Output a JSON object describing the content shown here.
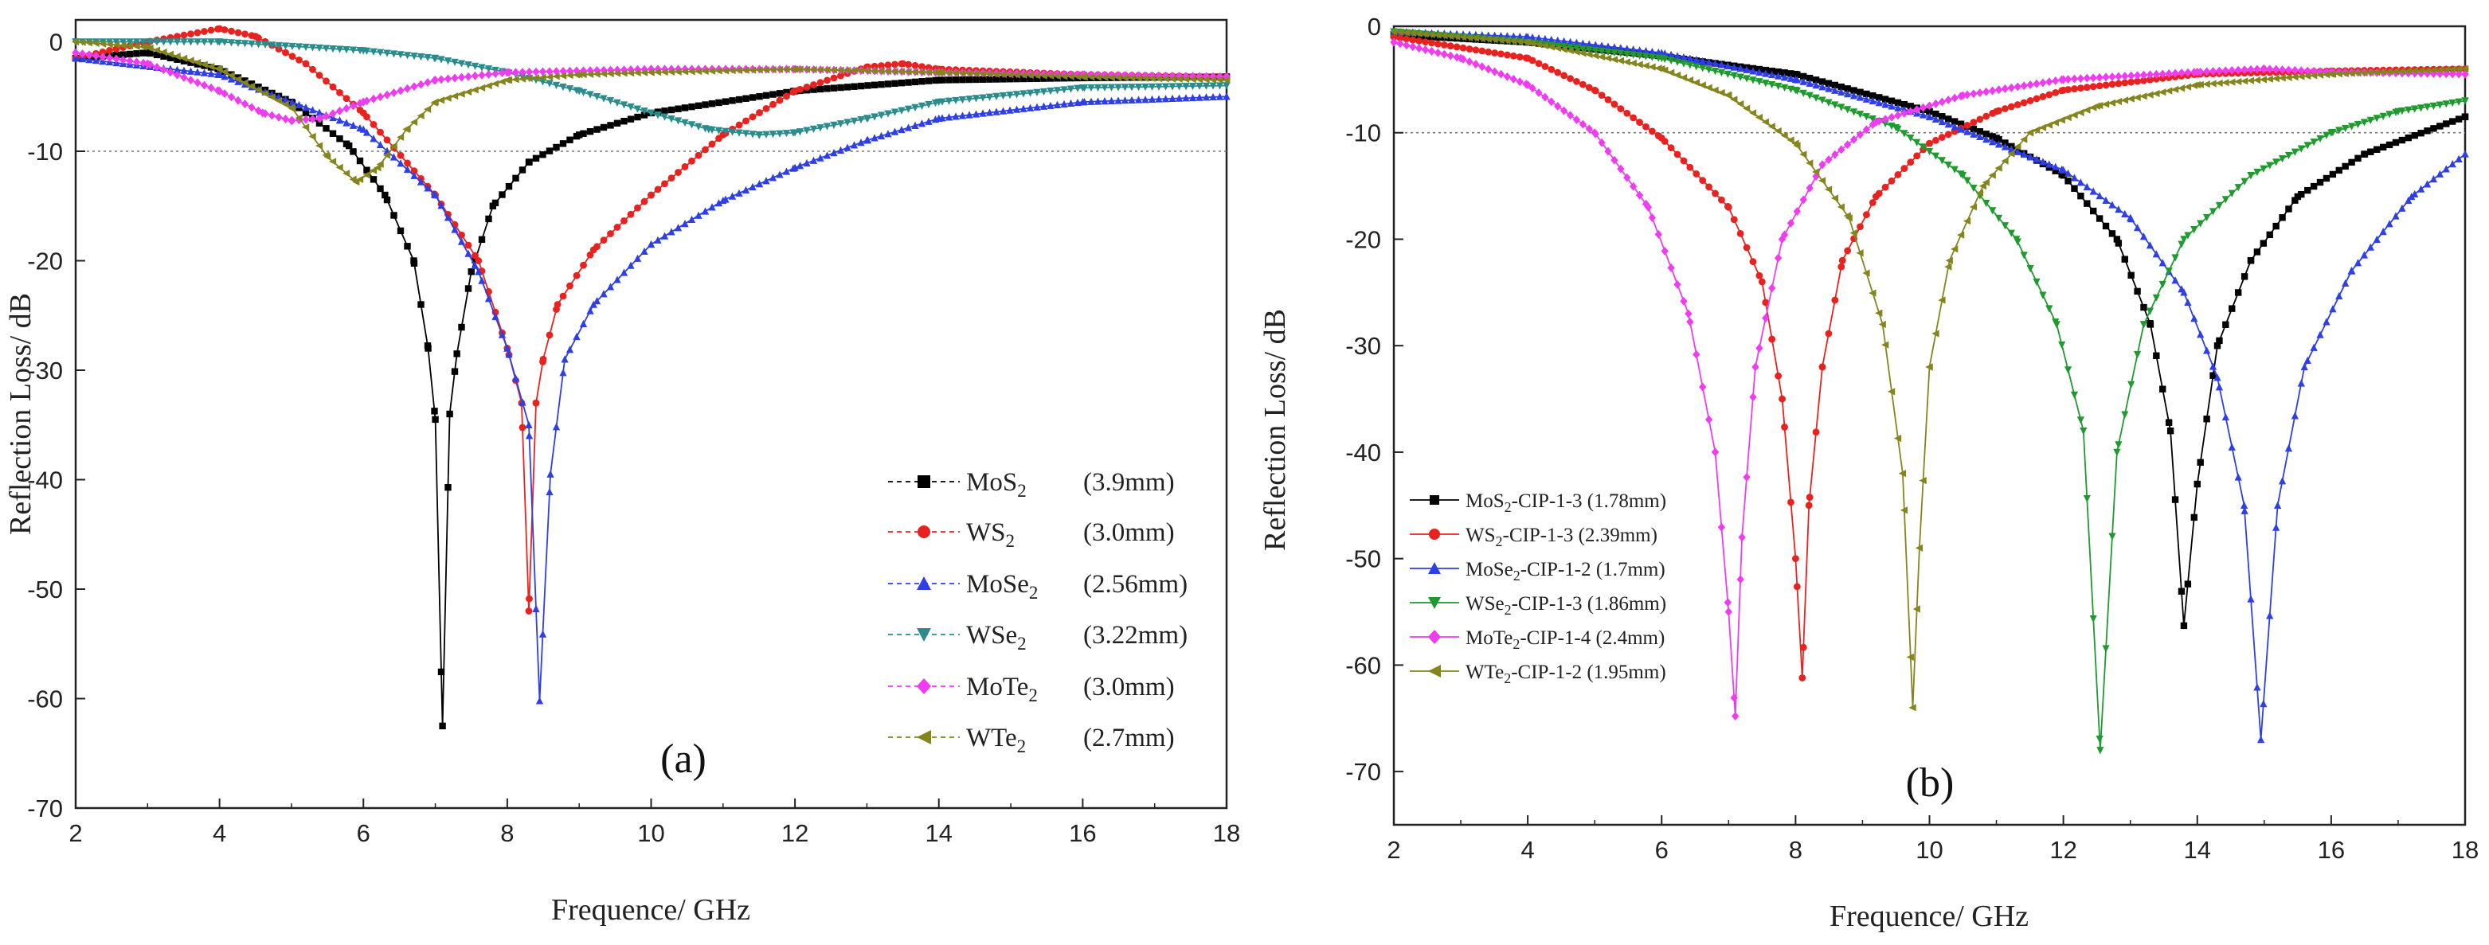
{
  "chart_data": [
    {
      "type": "line",
      "panel_label": "(a)",
      "xlabel": "Frequence/ GHz",
      "ylabel": "Reflection Loss/ dB",
      "xlim": [
        2,
        18
      ],
      "ylim": [
        -70,
        2
      ],
      "xticks": [
        2,
        4,
        6,
        8,
        10,
        12,
        14,
        16,
        18
      ],
      "yticks": [
        0,
        -10,
        -20,
        -30,
        -40,
        -50,
        -60,
        -70
      ],
      "reference_line": -10,
      "legend_position": "bottom-right",
      "series": [
        {
          "name": "MoS",
          "sub": "2",
          "thickness": "(3.9mm)",
          "color": "#000000",
          "marker": "square",
          "x": [
            2,
            3,
            4,
            5,
            5.8,
            6.3,
            6.7,
            6.9,
            7.0,
            7.1,
            7.2,
            7.3,
            7.5,
            7.8,
            8.3,
            9.0,
            10.0,
            12.0,
            14.0,
            16.0,
            18.0
          ],
          "y": [
            -1.5,
            -1.0,
            -2.5,
            -5.5,
            -9.5,
            -14.0,
            -20.0,
            -28.0,
            -34.5,
            -62.5,
            -34.0,
            -28.5,
            -21.0,
            -15.0,
            -11.0,
            -8.5,
            -6.5,
            -4.5,
            -3.5,
            -3.3,
            -3.2
          ]
        },
        {
          "name": "WS",
          "sub": "2",
          "thickness": "(3.0mm)",
          "color": "#e8231f",
          "marker": "circle",
          "x": [
            2,
            3,
            4,
            4.5,
            5.2,
            6,
            7,
            7.6,
            8.0,
            8.2,
            8.3,
            8.4,
            8.5,
            8.7,
            9.2,
            10,
            11,
            12,
            13,
            13.5,
            14,
            16,
            18
          ],
          "y": [
            -1.5,
            0,
            1.2,
            0.5,
            -2.0,
            -6.5,
            -14.0,
            -20.0,
            -28.0,
            -33.0,
            -52.0,
            -33.0,
            -29.0,
            -24.0,
            -19.0,
            -14.0,
            -8.5,
            -4.5,
            -2.3,
            -2.0,
            -2.5,
            -3.0,
            -3.2
          ]
        },
        {
          "name": "MoSe",
          "sub": "2",
          "thickness": "(2.56mm)",
          "color": "#2e3fe6",
          "marker": "triangle-up",
          "x": [
            2,
            4,
            6,
            7,
            7.6,
            8.0,
            8.3,
            8.45,
            8.6,
            8.8,
            9.2,
            10,
            11,
            12,
            13,
            14,
            16,
            18
          ],
          "y": [
            -1.5,
            -3.0,
            -8.0,
            -14.0,
            -21.0,
            -28.0,
            -35.0,
            -60.2,
            -39.5,
            -29.0,
            -24.0,
            -18.5,
            -14.5,
            -11.5,
            -9.0,
            -7.0,
            -5.5,
            -5.0
          ]
        },
        {
          "name": "WSe",
          "sub": "2",
          "thickness": "(3.22mm)",
          "color": "#2a8c8c",
          "marker": "triangle-down",
          "x": [
            2,
            4,
            6,
            7,
            8,
            9,
            10,
            10.8,
            11.5,
            12,
            13,
            14,
            16,
            18
          ],
          "y": [
            0,
            0,
            -0.8,
            -1.5,
            -2.8,
            -4.5,
            -6.5,
            -8.0,
            -8.5,
            -8.3,
            -7.0,
            -5.5,
            -4.2,
            -4.0
          ]
        },
        {
          "name": "MoTe",
          "sub": "2",
          "thickness": "(3.0mm)",
          "color": "#ef3cf0",
          "marker": "diamond",
          "x": [
            2,
            3,
            4,
            4.6,
            5.0,
            5.4,
            6,
            7,
            8,
            10,
            12,
            14,
            16,
            18
          ],
          "y": [
            -1.0,
            -2.0,
            -4.5,
            -6.5,
            -7.2,
            -7.0,
            -5.5,
            -3.5,
            -2.8,
            -2.5,
            -2.5,
            -2.8,
            -3.0,
            -3.2
          ]
        },
        {
          "name": "WTe",
          "sub": "2",
          "thickness": "(2.7mm)",
          "color": "#85851e",
          "marker": "triangle-left",
          "x": [
            2,
            3,
            4,
            5,
            5.5,
            5.9,
            6.2,
            6.6,
            7,
            8,
            9,
            10,
            12,
            14,
            16,
            18
          ],
          "y": [
            0,
            -0.5,
            -2.5,
            -6.0,
            -10.5,
            -12.8,
            -11.5,
            -8.0,
            -5.5,
            -3.5,
            -3.0,
            -2.8,
            -2.5,
            -2.8,
            -3.2,
            -3.5
          ]
        }
      ]
    },
    {
      "type": "line",
      "panel_label": "(b)",
      "xlabel": "Frequence/ GHz",
      "ylabel": "Reflection Loss/ dB",
      "xlim": [
        2,
        18
      ],
      "ylim": [
        -75,
        0
      ],
      "xticks": [
        2,
        4,
        6,
        8,
        10,
        12,
        14,
        16,
        18
      ],
      "yticks": [
        0,
        -10,
        -20,
        -30,
        -40,
        -50,
        -60,
        -70
      ],
      "reference_line": -10,
      "legend_position": "bottom-left",
      "series": [
        {
          "name": "MoS",
          "sub": "2",
          "label_rest": "-CIP-1-3 (1.78mm)",
          "color": "#000000",
          "marker": "square",
          "x": [
            2,
            4,
            6,
            8,
            10,
            11,
            12,
            12.8,
            13.3,
            13.6,
            13.8,
            14.0,
            14.3,
            14.8,
            15.5,
            16.5,
            18
          ],
          "y": [
            -0.8,
            -1.5,
            -2.8,
            -4.5,
            -8.0,
            -10.5,
            -14.0,
            -20.0,
            -28.0,
            -38.0,
            -56.3,
            -43.0,
            -30.0,
            -22.0,
            -16.0,
            -12.0,
            -8.5
          ]
        },
        {
          "name": "WS",
          "sub": "2",
          "label_rest": "-CIP-1-3 (2.39mm)",
          "color": "#e8231f",
          "marker": "circle",
          "x": [
            2,
            4,
            5,
            6,
            7,
            7.5,
            7.8,
            8.0,
            8.1,
            8.2,
            8.4,
            8.7,
            9.2,
            10,
            11,
            12,
            14,
            16,
            18
          ],
          "y": [
            -1.0,
            -3.0,
            -6.0,
            -10.5,
            -17.0,
            -24.0,
            -35.0,
            -50.0,
            -61.2,
            -45.0,
            -32.0,
            -22.0,
            -16.0,
            -11.0,
            -8.0,
            -6.0,
            -4.5,
            -4.2,
            -4.0
          ]
        },
        {
          "name": "MoSe",
          "sub": "2",
          "label_rest": "-CIP-1-2 (1.7mm)",
          "color": "#2e3fe6",
          "marker": "triangle-up",
          "x": [
            2,
            4,
            6,
            8,
            10,
            12,
            13,
            13.8,
            14.3,
            14.7,
            14.95,
            15.2,
            15.6,
            16.3,
            17.2,
            18
          ],
          "y": [
            -0.5,
            -1.0,
            -2.5,
            -5.0,
            -8.5,
            -13.5,
            -18.0,
            -25.0,
            -33.0,
            -45.0,
            -67.0,
            -45.0,
            -32.0,
            -23.0,
            -16.0,
            -12.0
          ]
        },
        {
          "name": "WSe",
          "sub": "2",
          "label_rest": "-CIP-1-3 (1.86mm)",
          "color": "#1e9a2f",
          "marker": "triangle-down",
          "x": [
            2,
            4,
            6,
            8,
            9.5,
            10.5,
            11.3,
            11.9,
            12.3,
            12.55,
            12.8,
            13.2,
            13.8,
            14.8,
            16,
            17,
            18
          ],
          "y": [
            -0.5,
            -1.5,
            -3.0,
            -6.0,
            -9.5,
            -14.0,
            -20.0,
            -28.0,
            -38.0,
            -68.0,
            -40.0,
            -28.0,
            -20.0,
            -14.0,
            -10.0,
            -8.0,
            -7.0
          ]
        },
        {
          "name": "MoTe",
          "sub": "2",
          "label_rest": "-CIP-1-4 (2.4mm)",
          "color": "#ef3cf0",
          "marker": "diamond",
          "x": [
            2,
            3,
            4,
            5,
            5.8,
            6.4,
            6.8,
            7.0,
            7.1,
            7.2,
            7.4,
            7.8,
            8.4,
            9.2,
            10.5,
            12,
            14,
            15,
            16,
            18
          ],
          "y": [
            -1.5,
            -3.0,
            -5.5,
            -10.0,
            -17.0,
            -27.0,
            -40.0,
            -55.0,
            -64.8,
            -48.0,
            -32.0,
            -20.0,
            -13.0,
            -9.0,
            -6.5,
            -5.0,
            -4.3,
            -4.0,
            -4.3,
            -4.5
          ]
        },
        {
          "name": "WTe",
          "sub": "2",
          "label_rest": "-CIP-1-2 (1.95mm)",
          "color": "#85851e",
          "marker": "triangle-left",
          "x": [
            2,
            4,
            6,
            7,
            8,
            8.8,
            9.3,
            9.6,
            9.75,
            9.85,
            10.0,
            10.3,
            10.8,
            11.5,
            12.5,
            14,
            16,
            18
          ],
          "y": [
            -0.5,
            -1.5,
            -4.0,
            -6.5,
            -11.0,
            -18.0,
            -28.0,
            -42.0,
            -64.0,
            -49.0,
            -32.0,
            -22.0,
            -15.0,
            -10.0,
            -7.5,
            -5.5,
            -4.5,
            -4.0
          ]
        }
      ]
    }
  ]
}
